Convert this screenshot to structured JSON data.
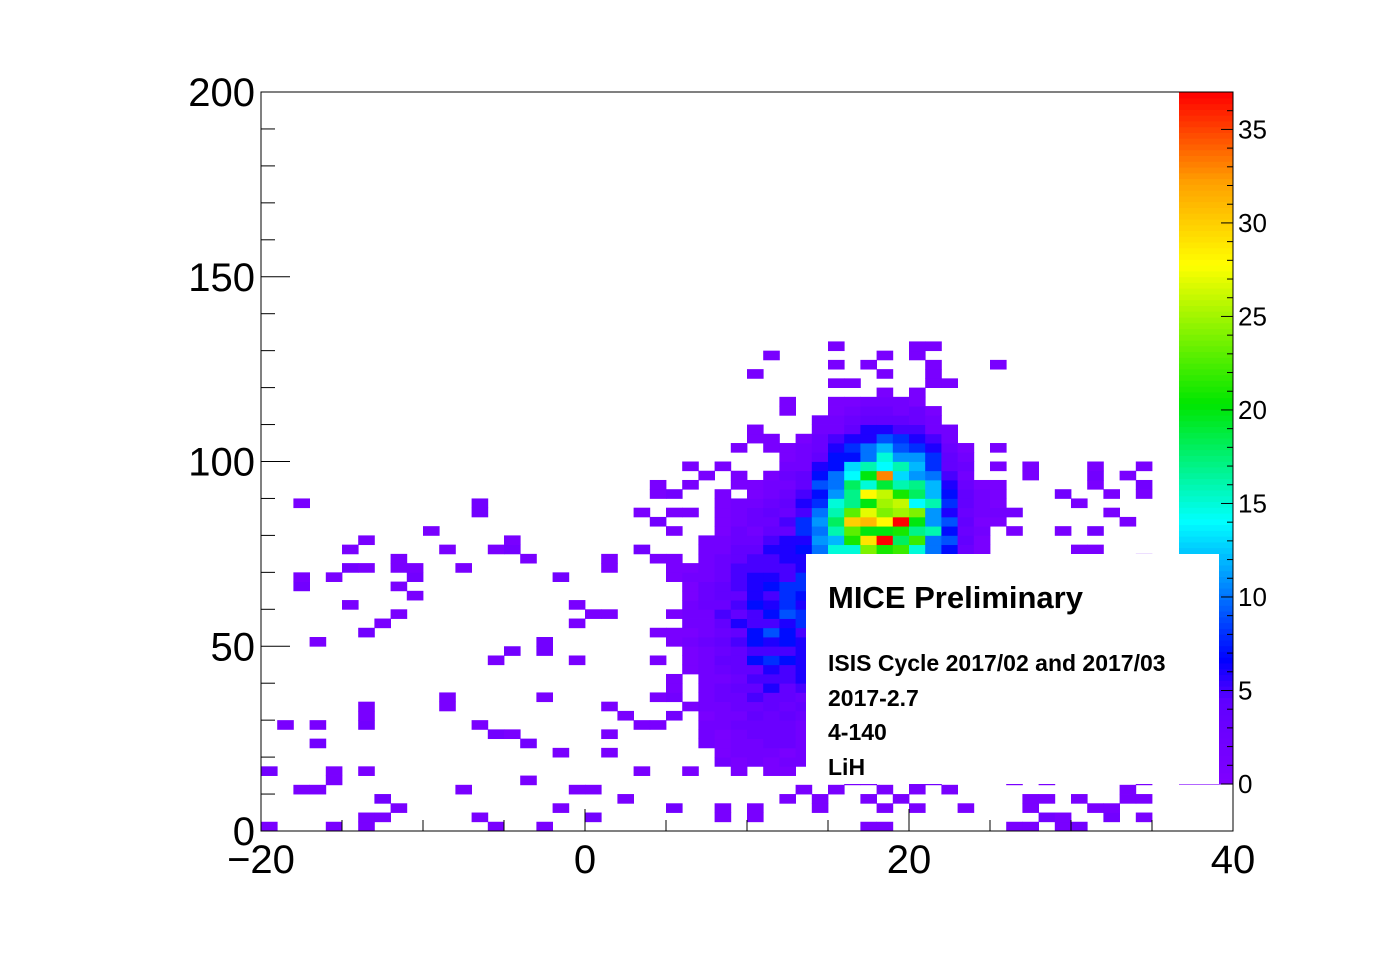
{
  "chart_data": {
    "type": "heatmap",
    "title": "",
    "xlabel": "",
    "ylabel": "",
    "xlim": [
      -20,
      40
    ],
    "ylim": [
      0,
      200
    ],
    "x_ticks": [
      "−20",
      "0",
      "20",
      "40"
    ],
    "y_ticks": [
      "0",
      "50",
      "100",
      "150",
      "200"
    ],
    "bin_width": 1,
    "bin_height": 2.5,
    "colorbar": {
      "range": [
        0,
        37
      ],
      "ticks": [
        "0",
        "5",
        "10",
        "15",
        "20",
        "25",
        "30",
        "35"
      ],
      "colormap": "rainbow (violet → blue → cyan → green → yellow → red)"
    },
    "distribution_note": "Core of the distribution peaks at x≈18–19, y≈75–95 with max ≈37 counts; sparse low-count (1–2) bins scattered for x −20 to 35, y 0 to 130.",
    "peak_bins": [
      {
        "x": 18.5,
        "y": 78.75,
        "count": 37
      },
      {
        "x": 19.5,
        "y": 83.75,
        "count": 37
      },
      {
        "x": 18.5,
        "y": 96.25,
        "count": 33
      },
      {
        "x": 17.5,
        "y": 91.25,
        "count": 28
      },
      {
        "x": 16.5,
        "y": 83.75,
        "count": 30
      }
    ]
  },
  "legend": {
    "title": "MICE Preliminary",
    "lines": [
      "ISIS Cycle 2017/02 and 2017/03",
      "2017-2.7",
      "4-140",
      "LiH"
    ]
  },
  "colors": {
    "frame": "#000000",
    "background": "#ffffff"
  }
}
